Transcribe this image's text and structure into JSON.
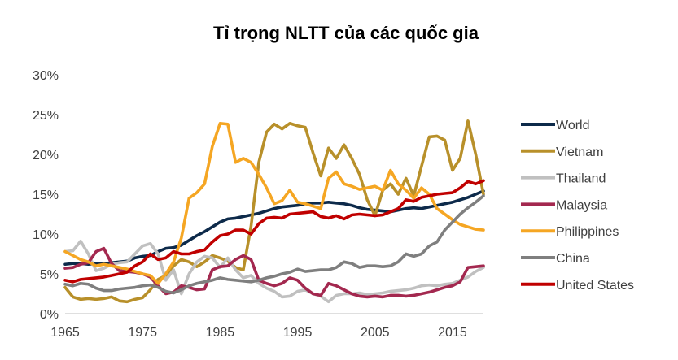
{
  "chart_data": {
    "type": "line",
    "title": "Tỉ trọng NLTT của các quốc gia",
    "xlabel": "",
    "ylabel": "",
    "xlim": [
      1965,
      2019
    ],
    "ylim": [
      0,
      30
    ],
    "x_ticks": [
      1965,
      1975,
      1985,
      1995,
      2005,
      2015
    ],
    "x_tick_labels": [
      "1965",
      "1975",
      "1985",
      "1995",
      "2005",
      "2015"
    ],
    "y_ticks": [
      0,
      5,
      10,
      15,
      20,
      25,
      30
    ],
    "y_tick_labels": [
      "0%",
      "5%",
      "10%",
      "15%",
      "20%",
      "25%",
      "30%"
    ],
    "grid": false,
    "legend_position": "right",
    "x": [
      1965,
      1966,
      1967,
      1968,
      1969,
      1970,
      1971,
      1972,
      1973,
      1974,
      1975,
      1976,
      1977,
      1978,
      1979,
      1980,
      1981,
      1982,
      1983,
      1984,
      1985,
      1986,
      1987,
      1988,
      1989,
      1990,
      1991,
      1992,
      1993,
      1994,
      1995,
      1996,
      1997,
      1998,
      1999,
      2000,
      2001,
      2002,
      2003,
      2004,
      2005,
      2006,
      2007,
      2008,
      2009,
      2010,
      2011,
      2012,
      2013,
      2014,
      2015,
      2016,
      2017,
      2018,
      2019
    ],
    "series": [
      {
        "name": "World",
        "color": "#0d2a4a",
        "values": [
          6.2,
          6.3,
          6.3,
          6.2,
          6.3,
          6.3,
          6.4,
          6.5,
          6.6,
          7.0,
          7.2,
          7.3,
          7.8,
          8.2,
          8.3,
          8.6,
          9.2,
          9.8,
          10.3,
          10.9,
          11.5,
          11.9,
          12.0,
          12.2,
          12.4,
          12.6,
          12.9,
          13.2,
          13.4,
          13.5,
          13.6,
          13.8,
          13.9,
          13.9,
          14.0,
          13.9,
          13.8,
          13.6,
          13.3,
          13.1,
          13.0,
          12.9,
          12.8,
          13.0,
          13.2,
          13.3,
          13.2,
          13.4,
          13.6,
          13.8,
          14.0,
          14.3,
          14.6,
          15.0,
          15.4
        ]
      },
      {
        "name": "Vietnam",
        "color": "#b8902a",
        "values": [
          3.3,
          2.1,
          1.8,
          1.9,
          1.8,
          1.9,
          2.1,
          1.6,
          1.5,
          1.8,
          2.0,
          3.0,
          4.3,
          4.8,
          6.0,
          6.8,
          6.5,
          5.9,
          6.5,
          7.3,
          7.0,
          6.6,
          5.8,
          5.5,
          11.0,
          19.0,
          22.8,
          23.8,
          23.2,
          23.9,
          23.6,
          23.4,
          20.2,
          17.3,
          20.8,
          19.5,
          21.2,
          19.5,
          17.5,
          14.3,
          12.3,
          15.5,
          16.3,
          15.0,
          17.0,
          14.8,
          18.5,
          22.2,
          22.3,
          21.8,
          18.0,
          19.5,
          24.2,
          20.0,
          15.0
        ]
      },
      {
        "name": "Thailand",
        "color": "#c0c0c0",
        "values": [
          7.8,
          7.9,
          9.1,
          7.5,
          5.4,
          5.7,
          6.2,
          6.4,
          6.5,
          7.5,
          8.5,
          8.8,
          7.5,
          4.2,
          5.5,
          2.5,
          5.0,
          6.5,
          7.2,
          7.0,
          5.8,
          7.0,
          5.5,
          4.5,
          4.8,
          3.8,
          3.2,
          2.8,
          2.1,
          2.2,
          2.8,
          3.0,
          2.5,
          2.2,
          1.5,
          2.3,
          2.5,
          2.5,
          2.6,
          2.4,
          2.5,
          2.6,
          2.8,
          2.9,
          3.0,
          3.2,
          3.5,
          3.6,
          3.5,
          3.7,
          3.8,
          4.2,
          4.6,
          5.3,
          5.8
        ]
      },
      {
        "name": "Malaysia",
        "color": "#a3284f",
        "values": [
          5.7,
          5.8,
          6.2,
          6.4,
          7.8,
          8.2,
          6.3,
          5.4,
          5.3,
          5.2,
          5.0,
          4.6,
          3.5,
          2.5,
          2.7,
          3.5,
          3.3,
          3.0,
          3.1,
          5.5,
          5.9,
          6.0,
          6.8,
          7.3,
          6.8,
          4.2,
          3.8,
          3.5,
          3.8,
          4.5,
          4.2,
          3.2,
          2.5,
          2.3,
          3.8,
          3.5,
          3.0,
          2.5,
          2.2,
          2.1,
          2.2,
          2.1,
          2.3,
          2.3,
          2.2,
          2.3,
          2.5,
          2.7,
          3.0,
          3.3,
          3.5,
          4.0,
          5.8,
          5.9,
          6.0
        ]
      },
      {
        "name": "Philippines",
        "color": "#f5a623",
        "values": [
          7.8,
          7.3,
          6.8,
          6.5,
          6.0,
          6.2,
          6.0,
          5.8,
          5.6,
          5.3,
          5.0,
          4.8,
          3.8,
          5.0,
          6.5,
          9.5,
          14.5,
          15.2,
          16.3,
          21.0,
          23.9,
          23.8,
          19.0,
          19.5,
          19.0,
          17.5,
          15.8,
          13.8,
          14.2,
          15.5,
          14.0,
          13.8,
          13.5,
          13.2,
          17.0,
          17.8,
          16.3,
          16.0,
          15.6,
          15.8,
          16.0,
          15.5,
          18.0,
          16.3,
          15.5,
          14.5,
          15.8,
          15.0,
          13.2,
          12.5,
          11.8,
          11.2,
          10.9,
          10.6,
          10.5
        ]
      },
      {
        "name": "China",
        "color": "#7f7f7f",
        "values": [
          3.7,
          3.5,
          3.8,
          3.7,
          3.2,
          2.9,
          2.9,
          3.1,
          3.2,
          3.3,
          3.5,
          3.6,
          3.3,
          2.8,
          2.6,
          3.0,
          3.5,
          3.8,
          4.0,
          4.2,
          4.5,
          4.3,
          4.2,
          4.1,
          4.0,
          4.2,
          4.5,
          4.7,
          5.0,
          5.2,
          5.6,
          5.3,
          5.4,
          5.5,
          5.5,
          5.8,
          6.5,
          6.3,
          5.8,
          6.0,
          6.0,
          5.9,
          6.0,
          6.5,
          7.5,
          7.2,
          7.5,
          8.5,
          9.0,
          10.5,
          11.5,
          12.5,
          13.3,
          14.0,
          14.8
        ]
      },
      {
        "name": "United States",
        "color": "#c00000",
        "values": [
          4.2,
          4.0,
          4.3,
          4.4,
          4.5,
          4.6,
          4.8,
          5.0,
          5.2,
          6.0,
          6.5,
          7.5,
          6.8,
          7.0,
          7.8,
          7.5,
          7.5,
          7.8,
          8.0,
          9.0,
          9.8,
          10.0,
          10.5,
          10.5,
          10.0,
          11.3,
          12.0,
          12.1,
          12.0,
          12.5,
          12.6,
          12.7,
          12.8,
          12.2,
          12.0,
          12.3,
          11.9,
          12.4,
          12.5,
          12.4,
          12.3,
          12.4,
          12.8,
          13.2,
          14.3,
          14.1,
          14.6,
          14.8,
          15.0,
          15.1,
          15.2,
          15.8,
          16.6,
          16.3,
          16.7
        ]
      }
    ]
  }
}
